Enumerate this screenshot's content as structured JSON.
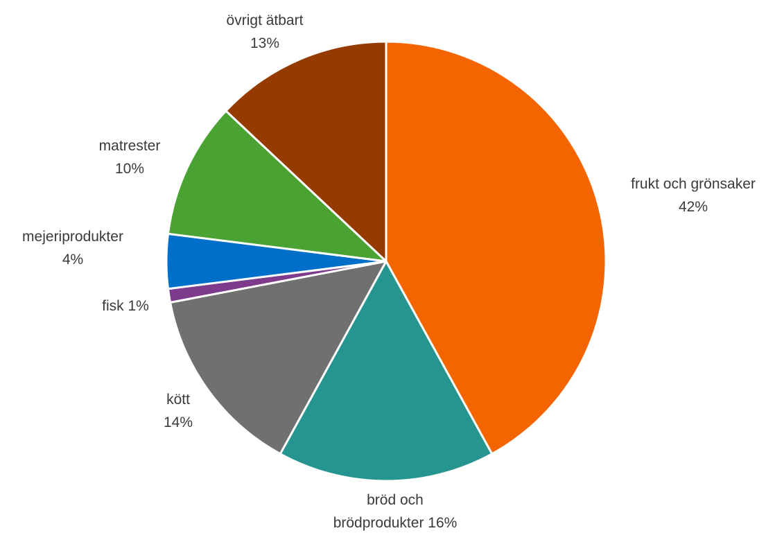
{
  "chart_data": {
    "type": "pie",
    "title": "",
    "start_angle_deg": 0,
    "direction": "clockwise",
    "slice_border_color": "#ffffff",
    "slices": [
      {
        "name": "frukt och grönsaker",
        "value": 42,
        "color": "#f46500",
        "label_lines": [
          "frukt och grönsaker",
          "42%"
        ]
      },
      {
        "name": "bröd och brödprodukter",
        "value": 16,
        "color": "#269590",
        "label_lines": [
          "bröd och",
          "brödprodukter 16%"
        ]
      },
      {
        "name": "kött",
        "value": 14,
        "color": "#707070",
        "label_lines": [
          "kött",
          "14%"
        ]
      },
      {
        "name": "fisk",
        "value": 1,
        "color": "#7e3b8c",
        "label_lines": [
          "fisk 1%"
        ]
      },
      {
        "name": "mejeriprodukter",
        "value": 4,
        "color": "#006fc9",
        "label_lines": [
          "mejeriprodukter",
          "4%"
        ]
      },
      {
        "name": "matrester",
        "value": 10,
        "color": "#4aa232",
        "label_lines": [
          "matrester",
          "10%"
        ]
      },
      {
        "name": "övrigt ätbart",
        "value": 13,
        "color": "#953b00",
        "label_lines": [
          "övrigt ätbart",
          "13%"
        ]
      }
    ]
  }
}
